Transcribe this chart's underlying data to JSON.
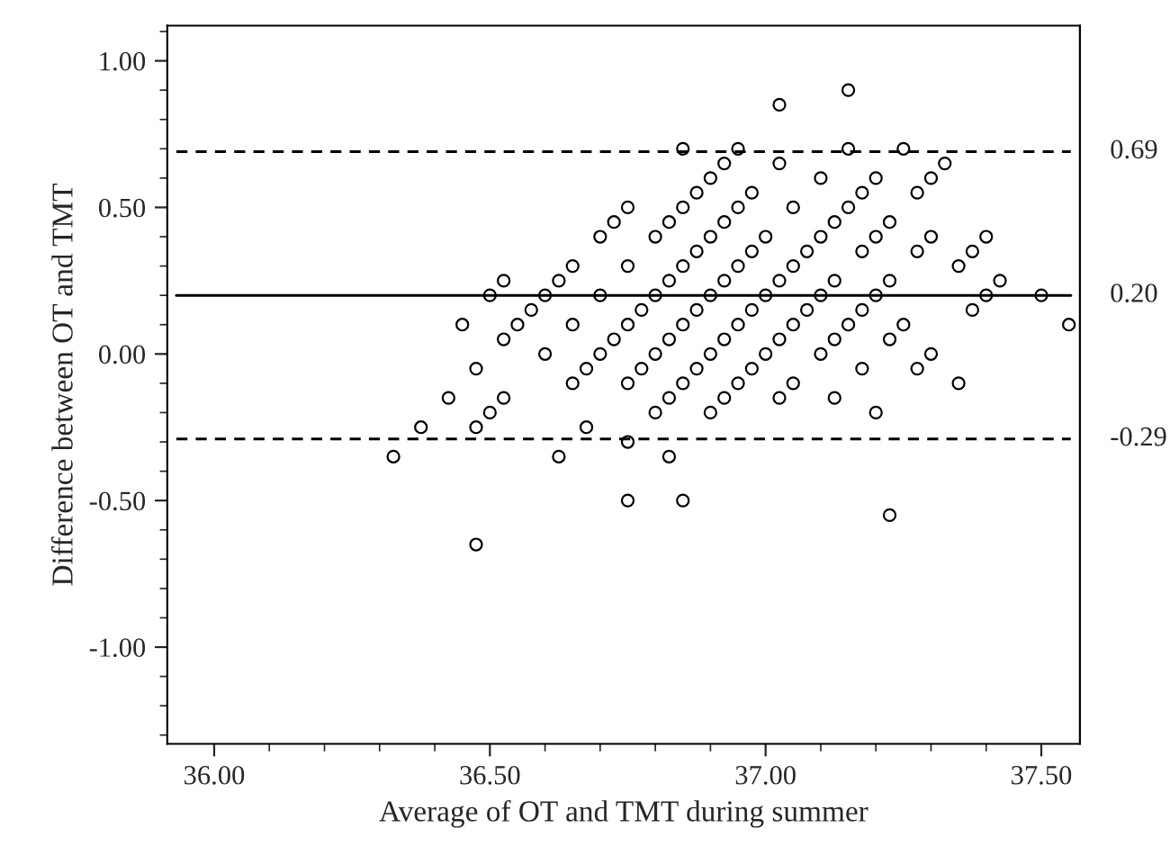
{
  "chart_data": {
    "type": "scatter",
    "xlabel": "Average of OT and TMT during summer",
    "ylabel": "Difference between OT and TMT",
    "xlim": [
      35.915,
      37.57
    ],
    "ylim": [
      -1.33,
      1.12
    ],
    "xticks": [
      {
        "value": 36.0,
        "label": "36.00"
      },
      {
        "value": 36.5,
        "label": "36.50"
      },
      {
        "value": 37.0,
        "label": "37.00"
      },
      {
        "value": 37.5,
        "label": "37.50"
      }
    ],
    "yticks": [
      {
        "value": -1.0,
        "label": "-1.00"
      },
      {
        "value": -0.5,
        "label": "-0.50"
      },
      {
        "value": 0.0,
        "label": "0.00"
      },
      {
        "value": 0.5,
        "label": "0.50"
      },
      {
        "value": 1.0,
        "label": "1.00"
      }
    ],
    "marker": "circle",
    "grid": false,
    "legend": false,
    "series": [
      {
        "color": "#000000",
        "x": [
          36.325,
          36.375,
          36.425,
          36.45,
          36.475,
          36.475,
          36.475,
          36.5,
          36.5,
          36.525,
          36.525,
          36.525,
          36.55,
          36.575,
          36.6,
          36.6,
          36.625,
          36.625,
          36.65,
          36.65,
          36.65,
          36.675,
          36.675,
          36.7,
          36.7,
          36.7,
          36.725,
          36.725,
          36.75,
          36.75,
          36.75,
          36.75,
          36.75,
          36.75,
          36.775,
          36.775,
          36.8,
          36.8,
          36.8,
          36.8,
          36.825,
          36.825,
          36.825,
          36.825,
          36.825,
          36.85,
          36.85,
          36.85,
          36.85,
          36.85,
          36.85,
          36.875,
          36.875,
          36.875,
          36.875,
          36.9,
          36.9,
          36.9,
          36.9,
          36.9,
          36.925,
          36.925,
          36.925,
          36.925,
          36.925,
          36.95,
          36.95,
          36.95,
          36.95,
          36.95,
          36.975,
          36.975,
          36.975,
          36.975,
          37.0,
          37.0,
          37.0,
          37.025,
          37.025,
          37.025,
          37.025,
          37.025,
          37.05,
          37.05,
          37.05,
          37.05,
          37.075,
          37.075,
          37.1,
          37.1,
          37.1,
          37.1,
          37.125,
          37.125,
          37.125,
          37.125,
          37.15,
          37.15,
          37.15,
          37.15,
          37.175,
          37.175,
          37.175,
          37.175,
          37.2,
          37.2,
          37.2,
          37.2,
          37.225,
          37.225,
          37.225,
          37.225,
          37.25,
          37.25,
          37.275,
          37.275,
          37.275,
          37.3,
          37.3,
          37.3,
          37.325,
          37.35,
          37.35,
          37.375,
          37.375,
          37.4,
          37.4,
          37.425,
          37.5,
          37.55
        ],
        "values": [
          -0.35,
          -0.25,
          -0.15,
          0.1,
          -0.05,
          -0.25,
          -0.65,
          0.2,
          -0.2,
          0.25,
          0.05,
          -0.15,
          0.1,
          0.15,
          0.2,
          0.0,
          0.25,
          -0.35,
          0.3,
          0.1,
          -0.1,
          -0.05,
          -0.25,
          0.4,
          0.2,
          0.0,
          0.45,
          0.05,
          0.5,
          0.3,
          0.1,
          -0.1,
          -0.3,
          -0.5,
          0.15,
          -0.05,
          0.4,
          0.2,
          0.0,
          -0.2,
          0.45,
          0.25,
          0.05,
          -0.15,
          -0.35,
          0.7,
          0.5,
          0.3,
          0.1,
          -0.1,
          -0.5,
          0.55,
          0.35,
          0.15,
          -0.05,
          0.6,
          0.4,
          0.2,
          0.0,
          -0.2,
          0.65,
          0.45,
          0.25,
          0.05,
          -0.15,
          0.7,
          0.5,
          0.3,
          0.1,
          -0.1,
          0.55,
          0.35,
          0.15,
          -0.05,
          0.4,
          0.2,
          0.0,
          0.85,
          0.65,
          0.25,
          0.05,
          -0.15,
          0.5,
          0.3,
          0.1,
          -0.1,
          0.35,
          0.15,
          0.6,
          0.4,
          0.2,
          0.0,
          0.45,
          0.25,
          0.05,
          -0.15,
          0.9,
          0.7,
          0.5,
          0.1,
          0.55,
          0.35,
          0.15,
          -0.05,
          0.6,
          0.4,
          0.2,
          -0.2,
          0.45,
          0.25,
          0.05,
          -0.55,
          0.7,
          0.1,
          0.55,
          0.35,
          -0.05,
          0.6,
          0.4,
          0.0,
          0.65,
          0.3,
          -0.1,
          0.35,
          0.15,
          0.4,
          0.2,
          0.25,
          0.2,
          0.1
        ]
      }
    ],
    "ref_lines": [
      {
        "axis": "y",
        "value": 0.69,
        "label": "0.69",
        "line_style": "dashed",
        "color": "#000000"
      },
      {
        "axis": "y",
        "value": 0.2,
        "label": "0.20",
        "line_style": "solid",
        "color": "#000000"
      },
      {
        "axis": "y",
        "value": -0.29,
        "label": "-0.29",
        "line_style": "dashed",
        "color": "#000000"
      }
    ]
  }
}
